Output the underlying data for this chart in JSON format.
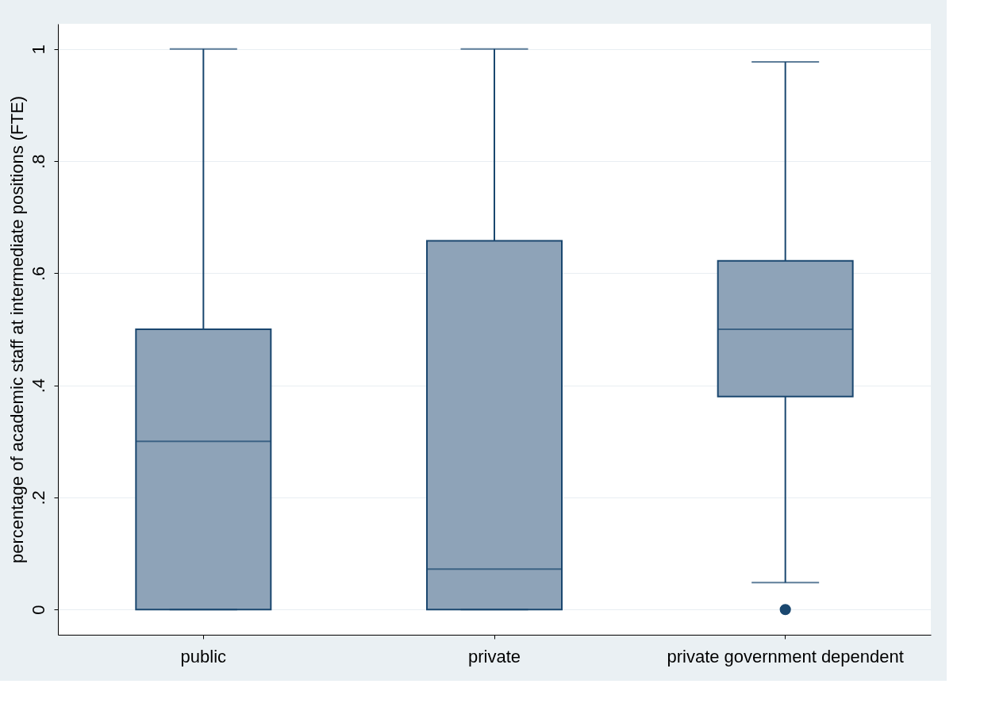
{
  "chart_data": {
    "type": "box",
    "ylabel": "percentage of academic staff at intermediate positions (FTE)",
    "categories": [
      "public",
      "private",
      "private government dependent"
    ],
    "series": [
      {
        "color": "#8ea3b8",
        "boxes": [
          {
            "low": 0,
            "q1": 0,
            "median": 0.3,
            "q3": 0.5,
            "high": 1
          },
          {
            "low": 0,
            "q1": 0,
            "median": 0.072,
            "q3": 0.658,
            "high": 1
          },
          {
            "low": 0.048,
            "q1": 0.38,
            "median": 0.5,
            "q3": 0.622,
            "high": 0.977,
            "outliers": [
              0
            ]
          }
        ]
      }
    ],
    "ylim": [
      -0.045,
      1.045
    ],
    "yticks": [
      {
        "value": 0,
        "label": "0"
      },
      {
        "value": 0.2,
        "label": ".2"
      },
      {
        "value": 0.4,
        "label": ".4"
      },
      {
        "value": 0.6,
        "label": ".6"
      },
      {
        "value": 0.8,
        "label": ".8"
      },
      {
        "value": 1,
        "label": "1"
      }
    ],
    "grid": "y"
  }
}
